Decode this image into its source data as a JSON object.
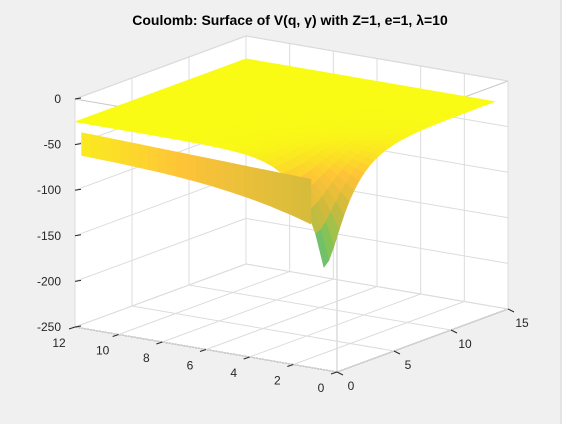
{
  "chart_data": {
    "type": "surface",
    "title": "Coulomb: Surface of V(q, γ) with Z=1, e=1, λ=10",
    "function": "V = -Z*e^2*λ*exp(...) (Coulomb-like well, deepest at q=0, γ=0)",
    "x_axis": {
      "name": "",
      "ticks": [
        0,
        2,
        4,
        6,
        8,
        10,
        12
      ],
      "lim": [
        0,
        12
      ]
    },
    "y_axis": {
      "name": "",
      "ticks": [
        0,
        5,
        10,
        15
      ],
      "lim": [
        0,
        15
      ]
    },
    "z_axis": {
      "name": "",
      "ticks": [
        0,
        -50,
        -100,
        -150,
        -200,
        -250
      ],
      "lim": [
        -250,
        0
      ]
    },
    "z_range_shown": [
      -250,
      -25
    ],
    "colormap": "parula",
    "colormap_stops": [
      "#3e26a8",
      "#4a52f8",
      "#2a83f0",
      "#16a8d8",
      "#33bb9b",
      "#8cc453",
      "#d0ba3b",
      "#fec338",
      "#f9fb15"
    ],
    "grid": true,
    "box": true
  }
}
